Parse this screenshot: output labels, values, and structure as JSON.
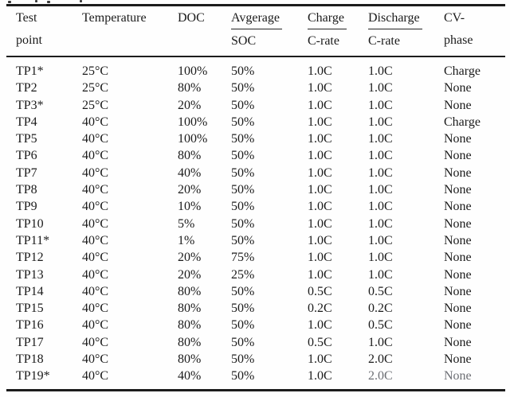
{
  "table": {
    "name": "battery-aging-test-plan",
    "columns": [
      {
        "id": "test-point",
        "line1": "Test",
        "line2": "point",
        "ruled": false
      },
      {
        "id": "temperature",
        "line1": "Temperature",
        "line2": "",
        "ruled": false
      },
      {
        "id": "doc",
        "line1": "DOC",
        "line2": "",
        "ruled": false
      },
      {
        "id": "average-soc",
        "line1": "Avgerage",
        "line2": "SOC",
        "ruled": true
      },
      {
        "id": "charge-c-rate",
        "line1": "Charge",
        "line2": "C-rate",
        "ruled": true
      },
      {
        "id": "discharge-c-rate",
        "line1": "Discharge",
        "line2": "C-rate",
        "ruled": true
      },
      {
        "id": "cv-phase",
        "line1": "CV-",
        "line2": "phase",
        "ruled": false
      }
    ],
    "rows": [
      [
        "TP1*",
        "25°C",
        "100%",
        "50%",
        "1.0C",
        "1.0C",
        "Charge"
      ],
      [
        "TP2",
        "25°C",
        "80%",
        "50%",
        "1.0C",
        "1.0C",
        "None"
      ],
      [
        "TP3*",
        "25°C",
        "20%",
        "50%",
        "1.0C",
        "1.0C",
        "None"
      ],
      [
        "TP4",
        "40°C",
        "100%",
        "50%",
        "1.0C",
        "1.0C",
        "Charge"
      ],
      [
        "TP5",
        "40°C",
        "100%",
        "50%",
        "1.0C",
        "1.0C",
        "None"
      ],
      [
        "TP6",
        "40°C",
        "80%",
        "50%",
        "1.0C",
        "1.0C",
        "None"
      ],
      [
        "TP7",
        "40°C",
        "40%",
        "50%",
        "1.0C",
        "1.0C",
        "None"
      ],
      [
        "TP8",
        "40°C",
        "20%",
        "50%",
        "1.0C",
        "1.0C",
        "None"
      ],
      [
        "TP9",
        "40°C",
        "10%",
        "50%",
        "1.0C",
        "1.0C",
        "None"
      ],
      [
        "TP10",
        "40°C",
        "5%",
        "50%",
        "1.0C",
        "1.0C",
        "None"
      ],
      [
        "TP11*",
        "40°C",
        "1%",
        "50%",
        "1.0C",
        "1.0C",
        "None"
      ],
      [
        "TP12",
        "40°C",
        "20%",
        "75%",
        "1.0C",
        "1.0C",
        "None"
      ],
      [
        "TP13",
        "40°C",
        "20%",
        "25%",
        "1.0C",
        "1.0C",
        "None"
      ],
      [
        "TP14",
        "40°C",
        "80%",
        "50%",
        "0.5C",
        "0.5C",
        "None"
      ],
      [
        "TP15",
        "40°C",
        "80%",
        "50%",
        "0.2C",
        "0.2C",
        "None"
      ],
      [
        "TP16",
        "40°C",
        "80%",
        "50%",
        "1.0C",
        "0.5C",
        "None"
      ],
      [
        "TP17",
        "40°C",
        "80%",
        "50%",
        "0.5C",
        "1.0C",
        "None"
      ],
      [
        "TP18",
        "40°C",
        "80%",
        "50%",
        "1.0C",
        "2.0C",
        "None"
      ],
      [
        "TP19*",
        "40°C",
        "40%",
        "50%",
        "1.0C",
        "2.0C",
        "None"
      ]
    ],
    "colors": {
      "text": "#1b1b1b",
      "rule": "#1c1c1c",
      "background": "#fefefe"
    }
  }
}
